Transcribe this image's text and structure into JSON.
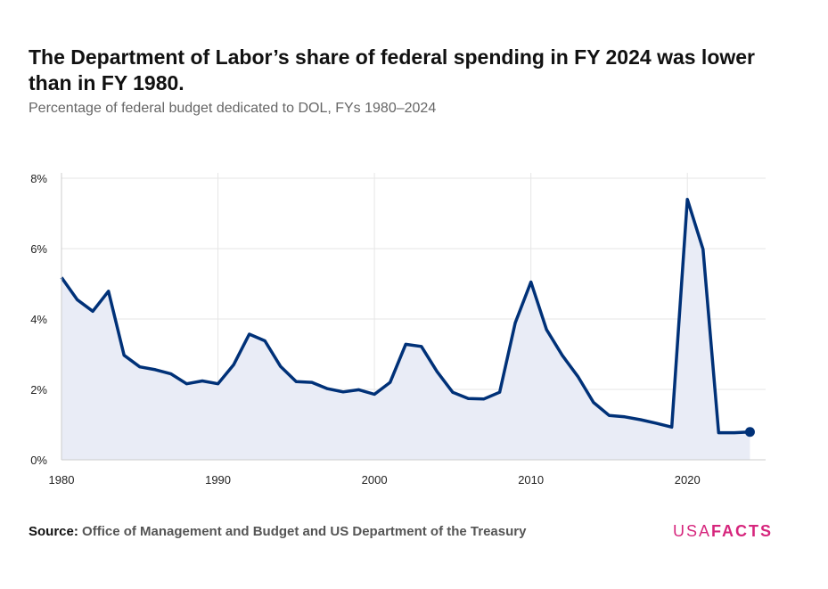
{
  "title": "The Department of Labor’s share of federal spending in FY 2024 was lower than in FY 1980.",
  "subtitle": "Percentage of federal budget dedicated to DOL, FYs 1980–2024",
  "source_label": "Source:",
  "source_text": "Office of Management and Budget and US Department of the Treasury",
  "logo": {
    "usa": "USA",
    "facts": "FACTS"
  },
  "colors": {
    "line": "#003178",
    "area": "#e9ecf6",
    "grid": "#e6e6e6",
    "logo": "#d6267d"
  },
  "chart_data": {
    "type": "area",
    "title": "The Department of Labor’s share of federal spending in FY 2024 was lower than in FY 1980.",
    "subtitle": "Percentage of federal budget dedicated to DOL, FYs 1980–2024",
    "xlabel": "",
    "ylabel": "",
    "xlim": [
      1980,
      2025
    ],
    "ylim": [
      0,
      8
    ],
    "x_ticks": [
      1980,
      1990,
      2000,
      2010,
      2020
    ],
    "x_tick_labels": [
      "1980",
      "1990",
      "2000",
      "2010",
      "2020"
    ],
    "y_ticks": [
      0,
      2,
      4,
      6,
      8
    ],
    "y_tick_labels": [
      "0%",
      "2%",
      "4%",
      "6%",
      "8%"
    ],
    "grid": true,
    "legend": "none",
    "series": [
      {
        "x": [
          1980,
          1981,
          1982,
          1983,
          1984,
          1985,
          1986,
          1987,
          1988,
          1989,
          1990,
          1991,
          1992,
          1993,
          1994,
          1995,
          1996,
          1997,
          1998,
          1999,
          2000,
          2001,
          2002,
          2003,
          2004,
          2005,
          2006,
          2007,
          2008,
          2009,
          2010,
          2011,
          2012,
          2013,
          2014,
          2015,
          2016,
          2017,
          2018,
          2019,
          2020,
          2021,
          2022,
          2023,
          2024
        ],
        "values": [
          5.18,
          4.55,
          4.22,
          4.79,
          2.97,
          2.64,
          2.56,
          2.44,
          2.16,
          2.24,
          2.16,
          2.7,
          3.57,
          3.38,
          2.65,
          2.22,
          2.2,
          2.02,
          1.93,
          1.99,
          1.86,
          2.2,
          3.28,
          3.22,
          2.51,
          1.92,
          1.74,
          1.73,
          1.92,
          3.89,
          5.05,
          3.7,
          2.97,
          2.37,
          1.63,
          1.26,
          1.22,
          1.14,
          1.04,
          0.93,
          7.4,
          5.98,
          0.77,
          0.77,
          0.79
        ]
      }
    ]
  }
}
